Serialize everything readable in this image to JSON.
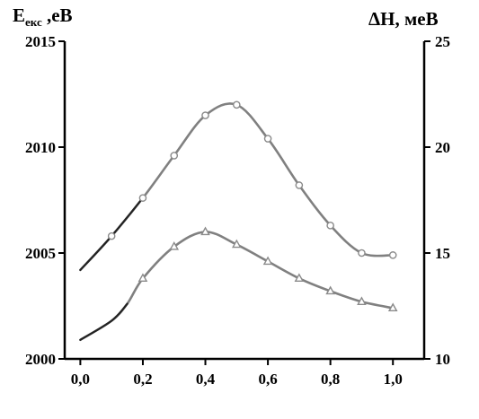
{
  "chart_data": {
    "type": "line",
    "left_axis_label": {
      "main": "E",
      "sub": "екс",
      "rest": " ,eB"
    },
    "right_axis_label": "ΔH, меВ",
    "x_ticks": [
      "0,0",
      "0,2",
      "0,4",
      "0,6",
      "0,8",
      "1,0"
    ],
    "left_ticks": [
      "2000",
      "2005",
      "2010",
      "2015"
    ],
    "right_ticks": [
      "10",
      "15",
      "20",
      "25"
    ],
    "xlim": [
      -0.05,
      1.1
    ],
    "ylim_left": [
      2000,
      2015
    ],
    "ylim_right": [
      10,
      25
    ],
    "grid": false,
    "series": [
      {
        "axis": "left",
        "marker": "circle",
        "color": "#808080",
        "x": [
          0.0,
          0.1,
          0.2,
          0.3,
          0.4,
          0.5,
          0.6,
          0.7,
          0.8,
          0.9,
          1.0
        ],
        "y": [
          2004.2,
          2005.8,
          2007.6,
          2009.6,
          2011.5,
          2012.0,
          2010.4,
          2008.2,
          2006.3,
          2005.0,
          2004.9
        ],
        "marker_x": [
          0.1,
          0.2,
          0.3,
          0.4,
          0.5,
          0.6,
          0.7,
          0.8,
          0.9,
          1.0
        ]
      },
      {
        "axis": "right",
        "marker": "triangle",
        "color": "#808080",
        "x": [
          0.0,
          0.1,
          0.15,
          0.2,
          0.3,
          0.4,
          0.5,
          0.6,
          0.7,
          0.8,
          0.9,
          1.0
        ],
        "y": [
          10.9,
          11.8,
          12.6,
          13.8,
          15.3,
          16.0,
          15.4,
          14.6,
          13.8,
          13.2,
          12.7,
          12.4
        ],
        "marker_x": [
          0.2,
          0.3,
          0.4,
          0.5,
          0.6,
          0.7,
          0.8,
          0.9,
          1.0
        ]
      }
    ]
  }
}
